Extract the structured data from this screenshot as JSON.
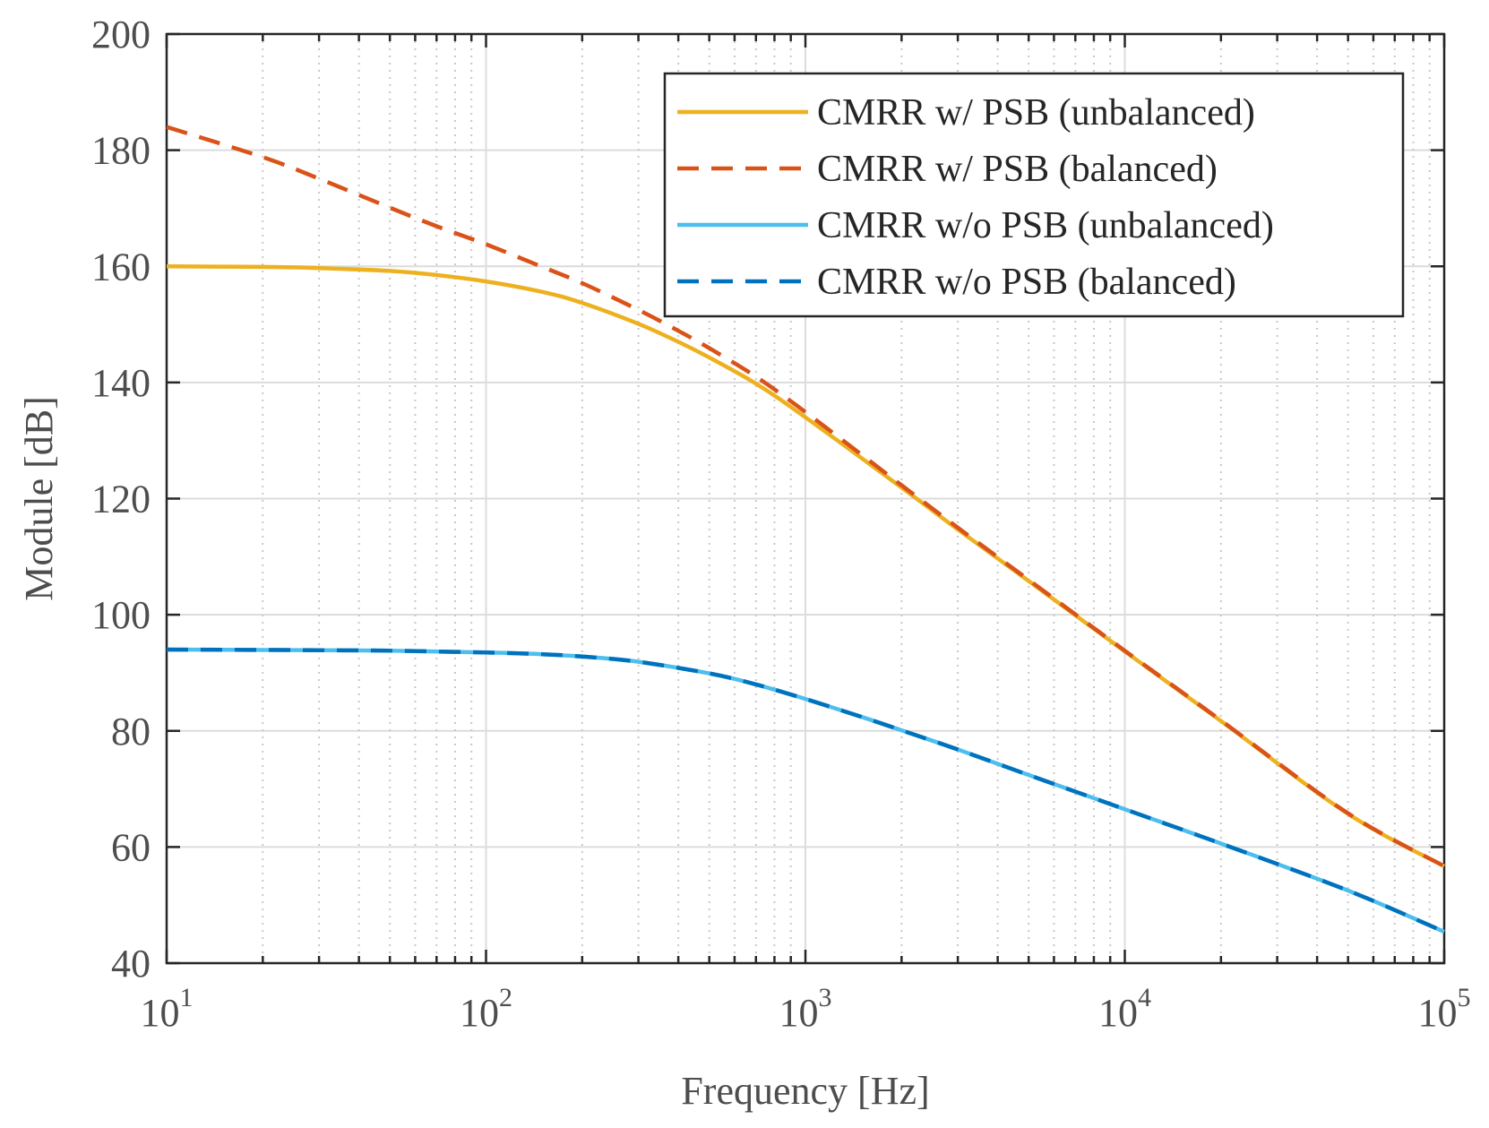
{
  "chart_data": {
    "type": "line",
    "title": "",
    "xlabel": "Frequency [Hz]",
    "ylabel": "Module [dB]",
    "xscale": "log",
    "xlim": [
      10,
      100000
    ],
    "ylim": [
      40,
      200
    ],
    "grid": true,
    "legend_position": "top-right",
    "x_ticks": [
      {
        "value": 10,
        "base": "10",
        "exp": "1"
      },
      {
        "value": 100,
        "base": "10",
        "exp": "2"
      },
      {
        "value": 1000,
        "base": "10",
        "exp": "3"
      },
      {
        "value": 10000,
        "base": "10",
        "exp": "4"
      },
      {
        "value": 100000,
        "base": "10",
        "exp": "5"
      }
    ],
    "y_ticks": [
      {
        "value": 40,
        "label": "40"
      },
      {
        "value": 60,
        "label": "60"
      },
      {
        "value": 80,
        "label": "80"
      },
      {
        "value": 100,
        "label": "100"
      },
      {
        "value": 120,
        "label": "120"
      },
      {
        "value": 140,
        "label": "140"
      },
      {
        "value": 160,
        "label": "160"
      },
      {
        "value": 180,
        "label": "180"
      },
      {
        "value": 200,
        "label": "200"
      }
    ],
    "series": [
      {
        "name": "CMRR w/ PSB (unbalanced)",
        "color": "#EDB120",
        "dash": "solid",
        "x": [
          10,
          20,
          30,
          50,
          70,
          100,
          150,
          200,
          300,
          400,
          500,
          700,
          1000,
          2000,
          3000,
          5000,
          10000,
          20000,
          50000,
          100000
        ],
        "y": [
          160,
          159.9,
          159.7,
          159.2,
          158.5,
          157.4,
          155.6,
          153.7,
          150.1,
          147.0,
          144.3,
          139.8,
          134.0,
          121.9,
          114.7,
          105.8,
          93.7,
          81.7,
          65.7,
          56.7
        ]
      },
      {
        "name": "CMRR w/ PSB (balanced)",
        "color": "#D95319",
        "dash": "dashed",
        "x": [
          10,
          20,
          30,
          50,
          70,
          100,
          150,
          200,
          300,
          400,
          500,
          700,
          1000,
          2000,
          3000,
          5000,
          10000,
          20000,
          50000,
          100000
        ],
        "y": [
          184,
          178.8,
          175.1,
          170.1,
          166.9,
          163.8,
          159.9,
          157.1,
          152.5,
          148.9,
          145.9,
          141.0,
          134.9,
          122.3,
          115.0,
          106.0,
          93.8,
          81.8,
          65.8,
          56.7
        ]
      },
      {
        "name": "CMRR w/o PSB (unbalanced)",
        "color": "#4DBEEE",
        "dash": "solid",
        "x": [
          10,
          30,
          50,
          100,
          150,
          200,
          300,
          500,
          700,
          1000,
          1500,
          2000,
          3000,
          5000,
          10000,
          20000,
          50000,
          100000
        ],
        "y": [
          94,
          93.9,
          93.8,
          93.5,
          93.2,
          92.8,
          91.9,
          89.9,
          88.0,
          85.5,
          82.4,
          80.1,
          76.8,
          72.4,
          66.5,
          60.6,
          52.5,
          45.4
        ]
      },
      {
        "name": "CMRR w/o PSB (balanced)",
        "color": "#0072BD",
        "dash": "dashed",
        "x": [
          10,
          30,
          50,
          100,
          150,
          200,
          300,
          500,
          700,
          1000,
          1500,
          2000,
          3000,
          5000,
          10000,
          20000,
          50000,
          100000
        ],
        "y": [
          94,
          93.9,
          93.8,
          93.5,
          93.2,
          92.8,
          91.9,
          89.9,
          88.0,
          85.5,
          82.4,
          80.1,
          76.8,
          72.4,
          66.5,
          60.6,
          52.5,
          45.4
        ]
      }
    ]
  }
}
